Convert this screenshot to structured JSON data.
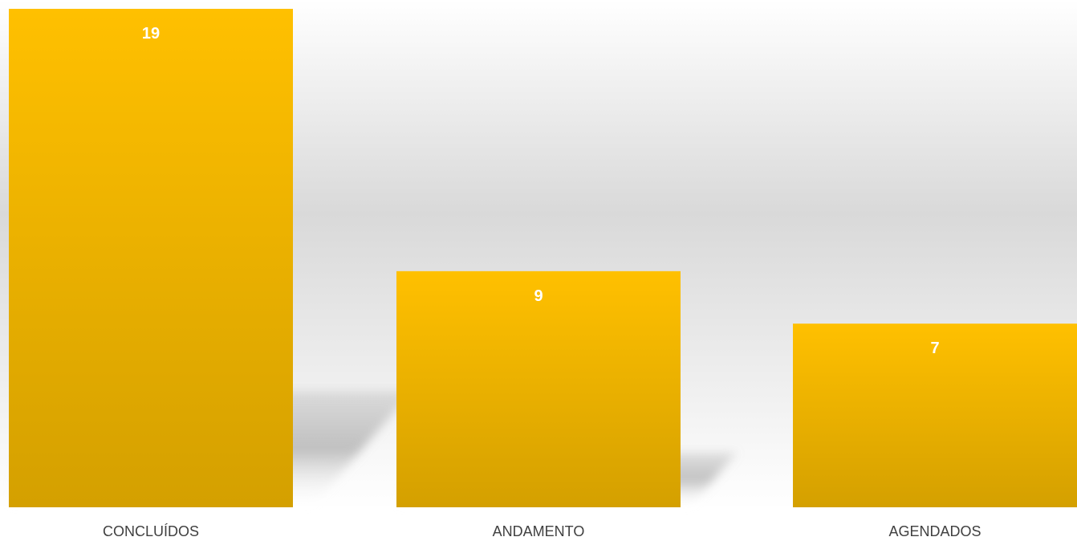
{
  "chart_data": {
    "type": "bar",
    "categories": [
      "CONCLUÍDOS",
      "ANDAMENTO",
      "AGENDADOS"
    ],
    "values": [
      19,
      9,
      7
    ],
    "title": "",
    "xlabel": "",
    "ylabel": "",
    "ylim": [
      0,
      19
    ],
    "grid": false,
    "legend": "none",
    "data_labels": true
  },
  "colors": {
    "bar_top": "#FFC000",
    "bar_bottom": "#D4A000",
    "data_label": "#FFFFFF",
    "category_label": "#404040",
    "background_top": "#FFFFFF",
    "background_mid": "#D9D9D9"
  }
}
